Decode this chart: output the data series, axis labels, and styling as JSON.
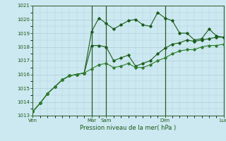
{
  "title": "",
  "xlabel": "Pression niveau de la mer( hPa )",
  "ylabel": "",
  "ylim": [
    1013,
    1021
  ],
  "yticks": [
    1013,
    1014,
    1015,
    1016,
    1017,
    1018,
    1019,
    1020,
    1021
  ],
  "bg_color": "#cce8f0",
  "grid_color": "#b0ccd8",
  "line_color_dark": "#1a5c1a",
  "line_color_medium": "#2e7d2e",
  "vline_color": "#2a5a2a",
  "xtick_labels": [
    "Ven",
    "Mar",
    "Sam",
    "Dim",
    "Lun"
  ],
  "series1": [
    1013.3,
    1013.9,
    1014.6,
    1015.1,
    1015.6,
    1015.9,
    1016.0,
    1016.1,
    1019.1,
    1020.1,
    1019.7,
    1019.3,
    1019.6,
    1019.9,
    1020.0,
    1019.6,
    1019.5,
    1020.5,
    1020.1,
    1019.9,
    1019.0,
    1019.0,
    1018.5,
    1018.6,
    1019.3,
    1018.8,
    1018.7
  ],
  "series2": [
    1013.3,
    1013.9,
    1014.6,
    1015.1,
    1015.6,
    1015.9,
    1016.0,
    1016.1,
    1018.1,
    1018.1,
    1018.0,
    1017.0,
    1017.2,
    1017.4,
    1016.6,
    1016.8,
    1017.0,
    1017.5,
    1017.9,
    1018.2,
    1018.3,
    1018.5,
    1018.4,
    1018.5,
    1018.6,
    1018.7,
    1018.7
  ],
  "series3": [
    1013.3,
    1013.9,
    1014.6,
    1015.1,
    1015.6,
    1015.9,
    1016.0,
    1016.1,
    1016.4,
    1016.7,
    1016.8,
    1016.5,
    1016.6,
    1016.8,
    1016.5,
    1016.5,
    1016.7,
    1017.0,
    1017.2,
    1017.5,
    1017.7,
    1017.8,
    1017.8,
    1018.0,
    1018.1,
    1018.1,
    1018.2
  ],
  "vline_x_indices": [
    8,
    10,
    18,
    26
  ],
  "marker": "D",
  "markersize": 1.8,
  "linewidth": 0.8
}
